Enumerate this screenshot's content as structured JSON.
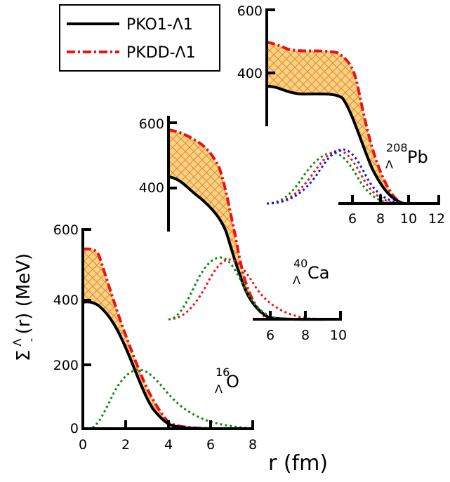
{
  "chart_data": [
    {
      "type": "line",
      "nucleus": {
        "mass": "16",
        "hyperon": "Λ",
        "element": "O"
      },
      "x_ticks": [
        "0",
        "2",
        "4",
        "6",
        "8"
      ],
      "y_ticks": [
        "0",
        "200",
        "400",
        "600"
      ],
      "xlim": [
        0,
        8
      ],
      "ylim": [
        0,
        600
      ],
      "series": [
        {
          "name": "PKO1-Λ1",
          "color": "#000000",
          "style": "solid",
          "x": [
            0,
            0.5,
            1.0,
            1.5,
            2.0,
            2.5,
            3.0,
            3.5,
            4.0,
            4.5,
            5.0,
            5.5,
            6.0,
            6.5,
            7.0,
            7.5,
            8.0
          ],
          "y": [
            390,
            390,
            370,
            320,
            250,
            180,
            125,
            70,
            35,
            15,
            7,
            3,
            1,
            0,
            0,
            0,
            0
          ]
        },
        {
          "name": "PKDD-Λ1",
          "color": "#ee1111",
          "style": "dashdot",
          "x": [
            0,
            0.5,
            1.0,
            1.5,
            2.0,
            2.5,
            3.0,
            3.5,
            4.0,
            4.5,
            5.0,
            5.5,
            6.0,
            6.5,
            7.0,
            7.5,
            8.0
          ],
          "y": [
            550,
            545,
            500,
            420,
            320,
            220,
            140,
            80,
            40,
            18,
            8,
            3,
            1,
            0,
            0,
            0,
            0
          ]
        },
        {
          "color": "#108a10",
          "style": "dotted",
          "role": "density",
          "x": [
            0,
            0.5,
            1.0,
            1.5,
            2.0,
            2.5,
            3.0,
            3.5,
            4.0,
            4.5,
            5.0,
            5.5,
            6.0,
            6.5,
            7.0,
            7.5,
            8.0
          ],
          "y": [
            0,
            5,
            35,
            95,
            150,
            180,
            170,
            140,
            110,
            80,
            55,
            35,
            20,
            10,
            5,
            2,
            0
          ]
        }
      ]
    },
    {
      "type": "line",
      "nucleus": {
        "mass": "40",
        "hyperon": "Λ",
        "element": "Ca"
      },
      "x_ticks": [
        "6",
        "8",
        "10"
      ],
      "y_ticks": [
        "400",
        "600"
      ],
      "series": [
        {
          "name": "PKO1-Λ1",
          "color": "#000000",
          "style": "solid",
          "x": [
            0,
            1,
            2,
            3,
            4,
            5,
            6,
            7,
            8,
            9,
            10
          ],
          "y": [
            430,
            415,
            390,
            330,
            240,
            150,
            90,
            50,
            30,
            20,
            10
          ]
        },
        {
          "name": "PKDD-Λ1",
          "color": "#ee1111",
          "style": "dashdot",
          "x": [
            0,
            1,
            2,
            3,
            4,
            5,
            6,
            7,
            8,
            9,
            10
          ],
          "y": [
            575,
            550,
            525,
            470,
            340,
            200,
            110,
            60,
            35,
            22,
            12
          ]
        },
        {
          "color": "#ee1111",
          "style": "dotted",
          "role": "density",
          "x": [
            0,
            1,
            2,
            3,
            4,
            5,
            6,
            7,
            8,
            9,
            10
          ],
          "y": [
            0,
            5,
            30,
            80,
            140,
            175,
            160,
            120,
            70,
            30,
            5
          ]
        },
        {
          "color": "#108a10",
          "style": "dotted",
          "role": "density",
          "x": [
            0,
            1,
            2,
            3,
            4,
            5,
            6,
            7,
            8,
            9,
            10
          ],
          "y": [
            0,
            15,
            60,
            120,
            170,
            175,
            130,
            75,
            35,
            10,
            2
          ]
        }
      ]
    },
    {
      "type": "line",
      "nucleus": {
        "mass": "208",
        "hyperon": "Λ",
        "element": "Pb"
      },
      "x_ticks": [
        "6",
        "8",
        "10",
        "12"
      ],
      "y_ticks": [
        "400",
        "600"
      ],
      "series": [
        {
          "name": "PKO1-Λ1",
          "color": "#000000",
          "style": "solid",
          "x": [
            0,
            2,
            4,
            6,
            7,
            8,
            9,
            10,
            11,
            12
          ],
          "y": [
            430,
            415,
            410,
            360,
            280,
            170,
            80,
            30,
            10,
            5
          ]
        },
        {
          "name": "PKDD-Λ1",
          "color": "#ee1111",
          "style": "dashdot",
          "x": [
            0,
            2,
            4,
            6,
            7,
            8,
            9,
            10,
            11,
            12
          ],
          "y": [
            565,
            545,
            540,
            500,
            380,
            220,
            100,
            35,
            12,
            5
          ]
        },
        {
          "color": "#108a10",
          "style": "dotted",
          "role": "density",
          "x": [
            0,
            2,
            4,
            6,
            7,
            8,
            9,
            10,
            11,
            12
          ],
          "y": [
            0,
            10,
            60,
            140,
            170,
            160,
            110,
            50,
            10,
            0
          ]
        },
        {
          "color": "#ee1111",
          "style": "dotted",
          "role": "density",
          "x": [
            0,
            2,
            4,
            6,
            7,
            8,
            9,
            10,
            11,
            12
          ],
          "y": [
            0,
            5,
            40,
            120,
            165,
            170,
            120,
            60,
            15,
            0
          ]
        },
        {
          "color": "#1111ee",
          "style": "dotted",
          "role": "density",
          "x": [
            0,
            2,
            4,
            6,
            7,
            8,
            9,
            10,
            11,
            12
          ],
          "y": [
            0,
            3,
            25,
            100,
            160,
            175,
            130,
            70,
            20,
            0
          ]
        }
      ]
    }
  ],
  "legend": {
    "placement": "top-left",
    "entries": [
      {
        "label": "PKO1-Λ1",
        "color": "#000000",
        "style": "solid"
      },
      {
        "label": "PKDD-Λ1",
        "color": "#ee1111",
        "style": "dashdot"
      }
    ]
  },
  "axis_titles": {
    "x": "r (fm)",
    "y_main": "Σ",
    "y_sup": "Λ",
    "y_sub": "-",
    "y_rest": "(r) (MeV)"
  },
  "colors": {
    "fill": "#f8d37a",
    "hatch": "#e07a4c",
    "pko1": "#000000",
    "pkdd": "#ee1111",
    "green": "#108a10",
    "blue": "#1111ee"
  }
}
